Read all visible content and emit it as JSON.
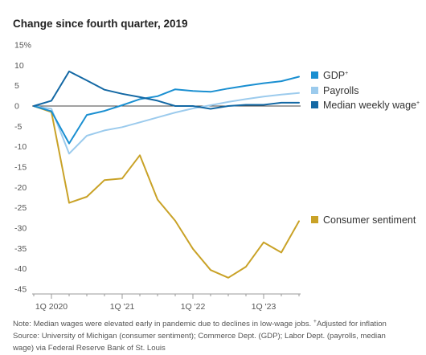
{
  "title": "Change since fourth quarter, 2019",
  "chart_data": {
    "type": "line",
    "title": "Change since fourth quarter, 2019",
    "y_unit": "%",
    "ylim": [
      -45,
      15
    ],
    "y_ticks": [
      15,
      10,
      5,
      0,
      -5,
      -10,
      -15,
      -20,
      -25,
      -30,
      -35,
      -40,
      -45
    ],
    "y_tick_labels": [
      "15%",
      "10",
      "5",
      "0",
      "-5",
      "-10",
      "-15",
      "-20",
      "-25",
      "-30",
      "-35",
      "-40",
      "-45"
    ],
    "x_ticks": [
      {
        "x": 1,
        "label": "1Q 2020"
      },
      {
        "x": 5,
        "label": "1Q '21"
      },
      {
        "x": 9,
        "label": "1Q '22"
      },
      {
        "x": 13,
        "label": "1Q '23"
      }
    ],
    "x": [
      0,
      1,
      2,
      3,
      4,
      5,
      6,
      7,
      8,
      9,
      10,
      11,
      12,
      13,
      14,
      15
    ],
    "grid": false,
    "series": [
      {
        "name": "GDP",
        "marker": "+",
        "color": "#1a8fd1",
        "values": [
          0,
          -1.3,
          -9.2,
          -2.2,
          -1.2,
          0.2,
          1.7,
          2.4,
          4.1,
          3.7,
          3.5,
          4.3,
          5.0,
          5.6,
          6.1,
          7.2
        ]
      },
      {
        "name": "Payrolls",
        "marker": "",
        "color": "#9ccbed",
        "values": [
          0,
          -0.7,
          -11.7,
          -7.3,
          -6.0,
          -5.2,
          -4.0,
          -2.8,
          -1.6,
          -0.6,
          0.2,
          1.0,
          1.7,
          2.3,
          2.8,
          3.2
        ]
      },
      {
        "name": "Median weekly wage",
        "marker": "+",
        "color": "#1368a4",
        "values": [
          0,
          1.3,
          8.5,
          6.3,
          4.0,
          3.0,
          2.2,
          1.3,
          0.0,
          0.0,
          -0.7,
          0.0,
          0.3,
          0.3,
          0.8,
          0.8
        ]
      },
      {
        "name": "Consumer sentiment",
        "marker": "",
        "color": "#c9a227",
        "values": [
          0,
          -1.5,
          -23.8,
          -22.3,
          -18.2,
          -17.8,
          -12.1,
          -23.0,
          -28.2,
          -35.1,
          -40.3,
          -42.2,
          -39.5,
          -33.5,
          -36.0,
          -28.3
        ]
      }
    ]
  },
  "note": {
    "line1": "Note: Median wages were elevated early in pandemic due to declines in low-wage jobs. ",
    "line1_sup": "+",
    "line1_tail": "Adjusted for inflation",
    "line2": "Source: University of Michigan (consumer sentiment); Commerce Dept. (GDP); Labor Dept. (payrolls, median",
    "line3": "wage) via Federal Reserve Bank of St. Louis"
  }
}
